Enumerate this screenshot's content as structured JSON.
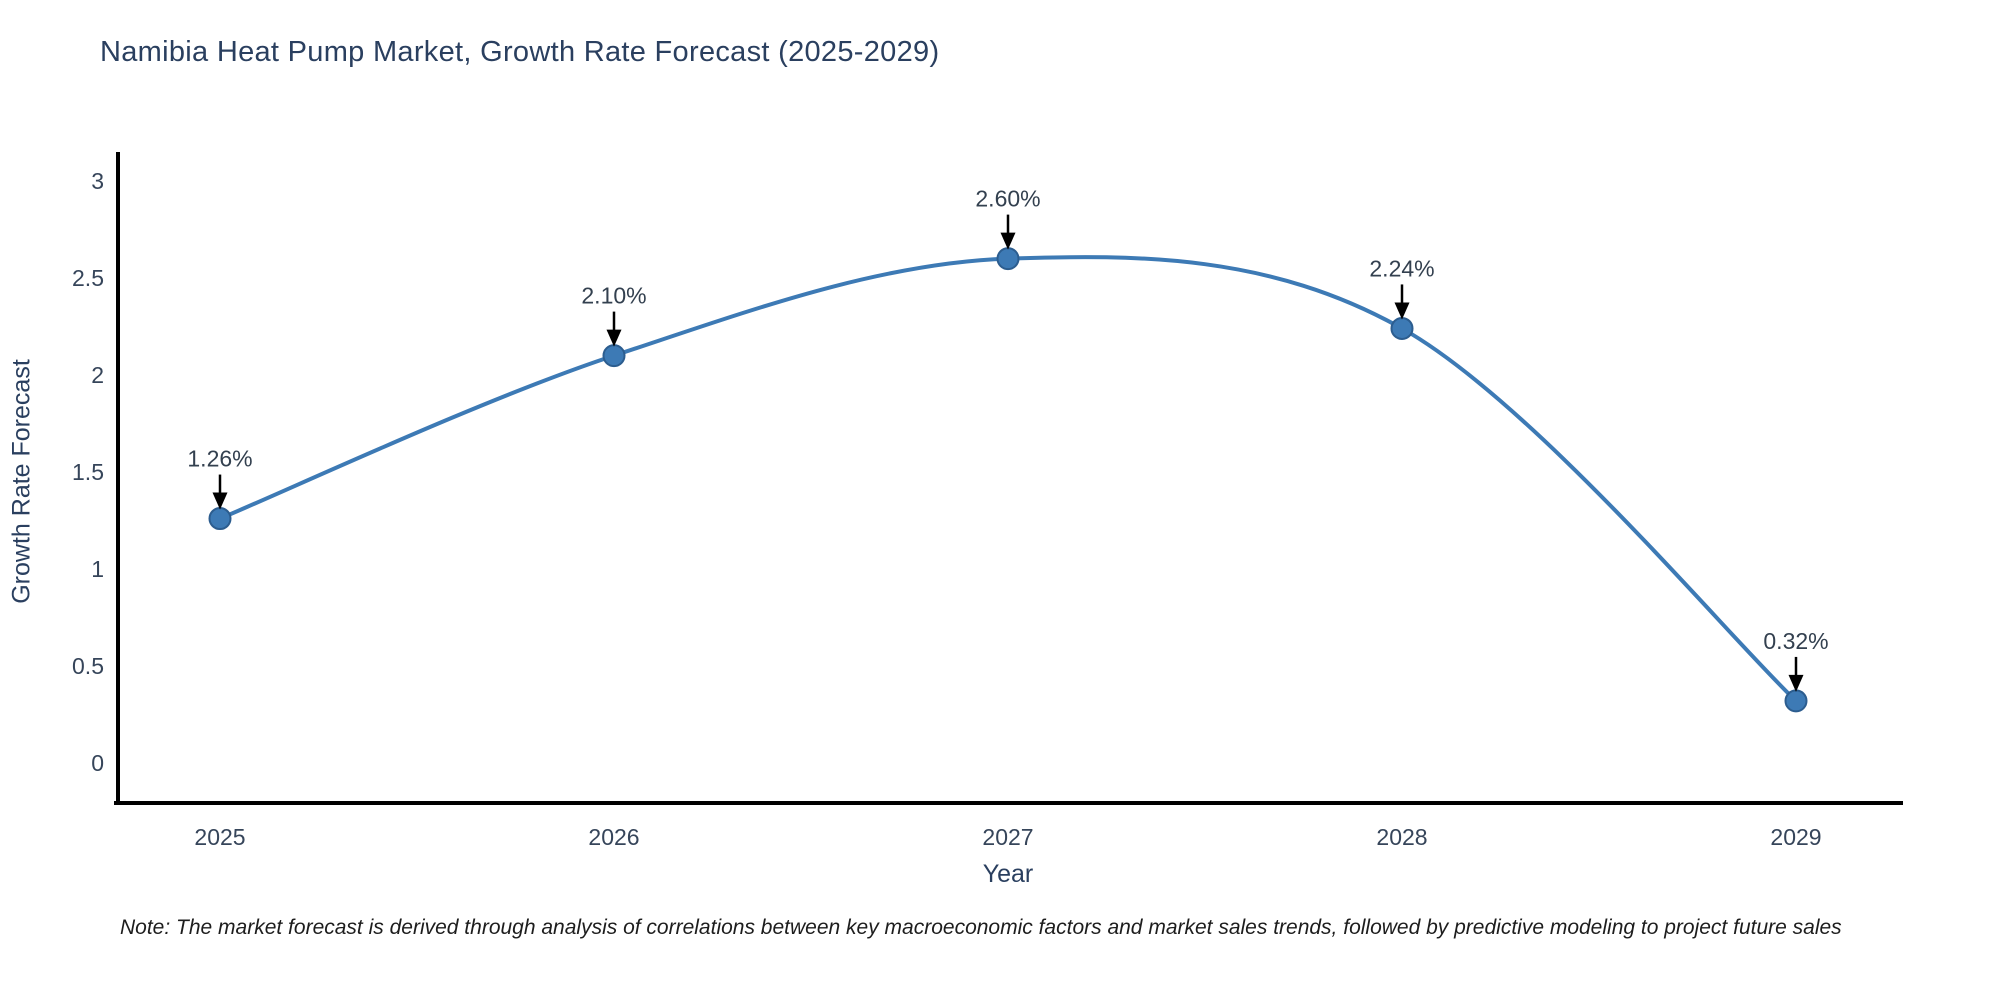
{
  "title": "Namibia Heat Pump Market, Growth Rate Forecast (2025-2029)",
  "note": "Note: The market forecast is derived through analysis of correlations between key macroeconomic factors and market sales trends, followed by predictive modeling to project future sales",
  "chart_data": {
    "type": "line",
    "curve": "spline",
    "title": "Namibia Heat Pump Market, Growth Rate Forecast (2025-2029)",
    "xlabel": "Year",
    "ylabel": "Growth Rate Forecast",
    "x": [
      "2025",
      "2026",
      "2027",
      "2028",
      "2029"
    ],
    "series": [
      {
        "name": "Growth Rate Forecast",
        "values": [
          1.26,
          2.1,
          2.6,
          2.24,
          0.32
        ]
      }
    ],
    "point_labels": [
      "1.26%",
      "2.10%",
      "2.60%",
      "2.24%",
      "0.32%"
    ],
    "ylim": [
      0,
      3
    ],
    "yticks": [
      0,
      0.5,
      1,
      1.5,
      2,
      2.5,
      3
    ],
    "grid": false,
    "legend": "none",
    "colors": {
      "line": "#3d7ab5",
      "marker": "#3d7ab5",
      "marker_edge": "#2c5d8f",
      "axis": "#000000",
      "tick_label": "#36455a",
      "annotation_text": "#33404f",
      "annotation_arrow": "#000000",
      "background": "#ffffff"
    }
  }
}
